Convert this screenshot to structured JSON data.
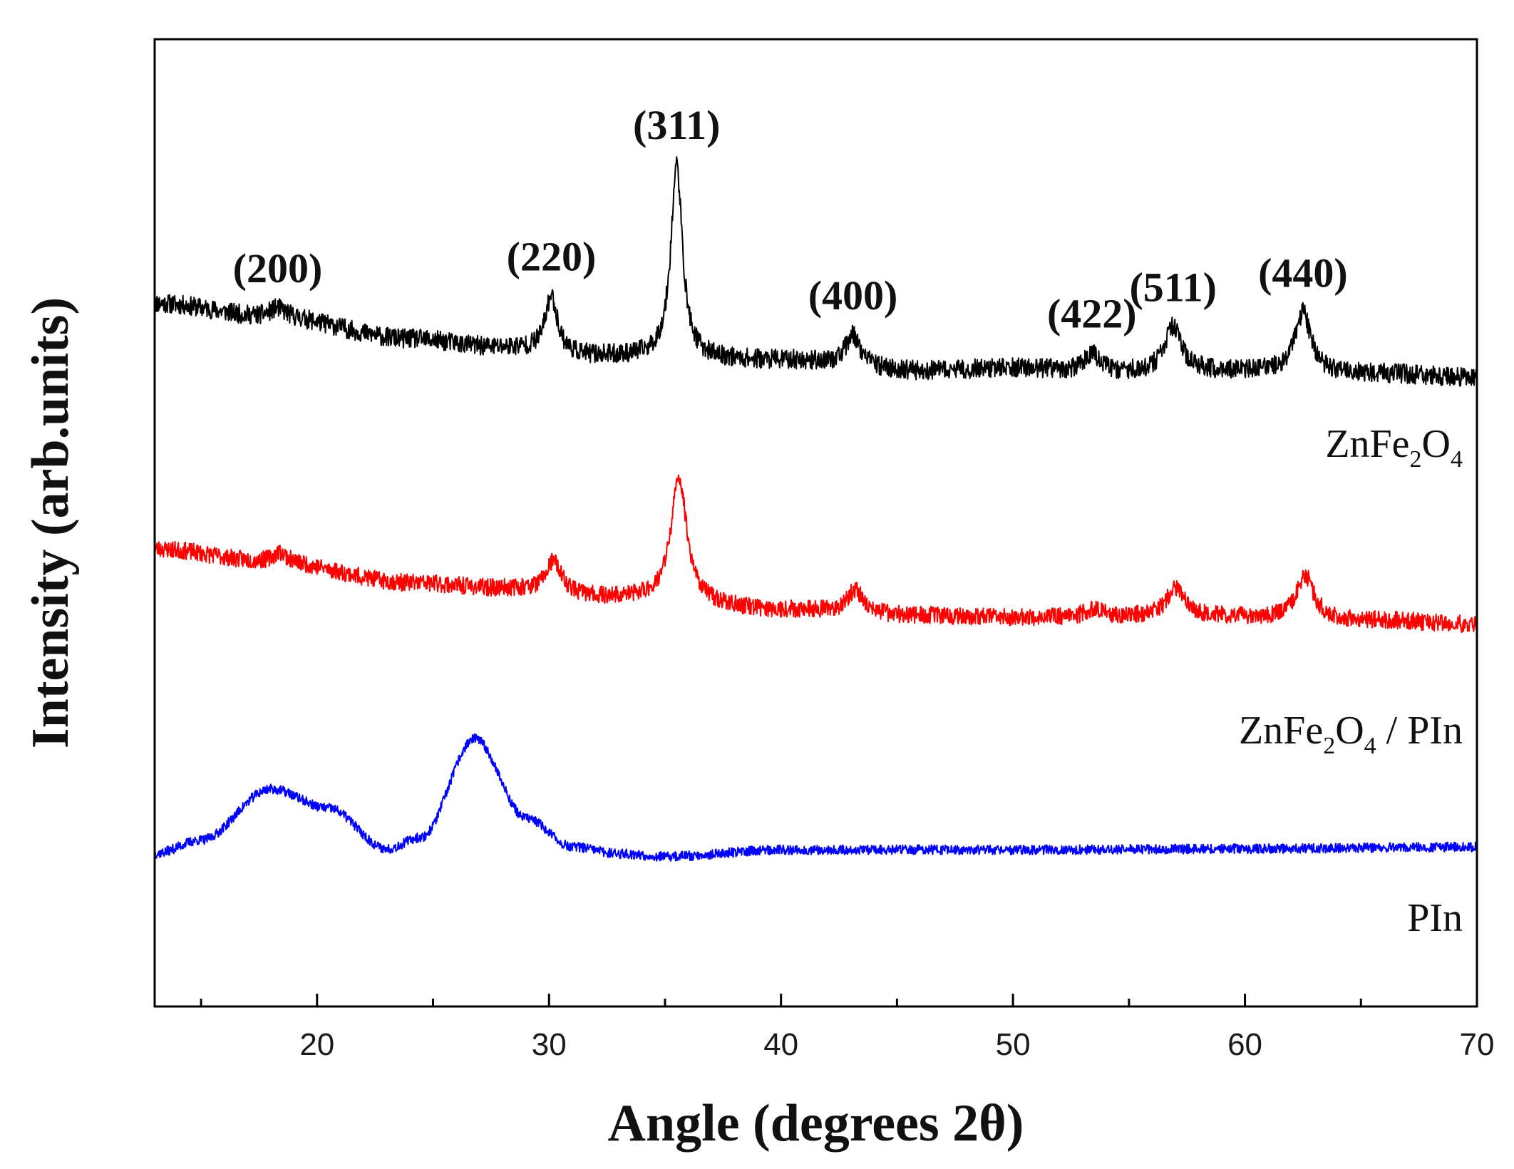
{
  "chart_data": {
    "type": "line",
    "title": "",
    "xlabel": "Angle (degrees 2θ)",
    "ylabel": "Intensity (arb.units)",
    "xlim": [
      13,
      70
    ],
    "ylim": [
      0,
      1
    ],
    "xticks": [
      20,
      30,
      40,
      50,
      60,
      70
    ],
    "xticks_minor": [
      15,
      25,
      35,
      45,
      55,
      65
    ],
    "grid": false,
    "series": [
      {
        "name": "ZnFe2O4",
        "label_parts": [
          "ZnFe",
          "2",
          "O",
          "4"
        ],
        "color": "#000000",
        "noise": 0.01,
        "seed": 11,
        "x": [
          13,
          18.3,
          24,
          28,
          32,
          40,
          46,
          50,
          54,
          58,
          66,
          70
        ],
        "y": [
          0.727,
          0.712,
          0.69,
          0.681,
          0.672,
          0.668,
          0.657,
          0.66,
          0.655,
          0.657,
          0.654,
          0.65
        ],
        "peaks": [
          {
            "center": 18.3,
            "height": 0.01,
            "width": 0.45
          },
          {
            "center": 30.1,
            "height": 0.058,
            "width": 0.32
          },
          {
            "center": 35.5,
            "height": 0.2,
            "width": 0.3
          },
          {
            "center": 43.1,
            "height": 0.032,
            "width": 0.38
          },
          {
            "center": 53.4,
            "height": 0.02,
            "width": 0.4
          },
          {
            "center": 56.9,
            "height": 0.046,
            "width": 0.42
          },
          {
            "center": 62.5,
            "height": 0.062,
            "width": 0.42
          }
        ]
      },
      {
        "name": "ZnFe2O4 / PIn",
        "label_parts": [
          "ZnFe",
          "2",
          "O",
          "4",
          " / PIn"
        ],
        "color": "#ff0000",
        "noise": 0.009,
        "seed": 23,
        "x": [
          13,
          18,
          24,
          28,
          33,
          40,
          46,
          50,
          54,
          58,
          66,
          70
        ],
        "y": [
          0.473,
          0.46,
          0.438,
          0.432,
          0.422,
          0.41,
          0.404,
          0.402,
          0.403,
          0.403,
          0.399,
          0.395
        ],
        "peaks": [
          {
            "center": 18.4,
            "height": 0.01,
            "width": 0.35
          },
          {
            "center": 30.2,
            "height": 0.032,
            "width": 0.4
          },
          {
            "center": 35.6,
            "height": 0.128,
            "width": 0.42
          },
          {
            "center": 43.2,
            "height": 0.024,
            "width": 0.4
          },
          {
            "center": 53.5,
            "height": 0.008,
            "width": 0.4
          },
          {
            "center": 57.0,
            "height": 0.03,
            "width": 0.45
          },
          {
            "center": 62.6,
            "height": 0.045,
            "width": 0.45
          }
        ]
      },
      {
        "name": "PIn",
        "label_parts": [
          "PIn"
        ],
        "color": "#0000ff",
        "noise": 0.005,
        "seed": 37,
        "x": [
          13,
          15,
          18,
          20.5,
          23,
          24.5,
          26.8,
          29,
          31,
          33,
          35,
          40,
          50,
          60,
          70
        ],
        "y": [
          0.158,
          0.172,
          0.225,
          0.205,
          0.163,
          0.175,
          0.277,
          0.195,
          0.165,
          0.158,
          0.155,
          0.162,
          0.162,
          0.163,
          0.165
        ],
        "peaks": []
      }
    ],
    "annotations": [
      {
        "text": "(200)",
        "x": 18.3
      },
      {
        "text": "(220)",
        "x": 30.1
      },
      {
        "text": "(311)",
        "x": 35.5
      },
      {
        "text": "(400)",
        "x": 43.1
      },
      {
        "text": "(422)",
        "x": 53.4
      },
      {
        "text": "(511)",
        "x": 56.9
      },
      {
        "text": "(440)",
        "x": 62.5
      }
    ]
  }
}
